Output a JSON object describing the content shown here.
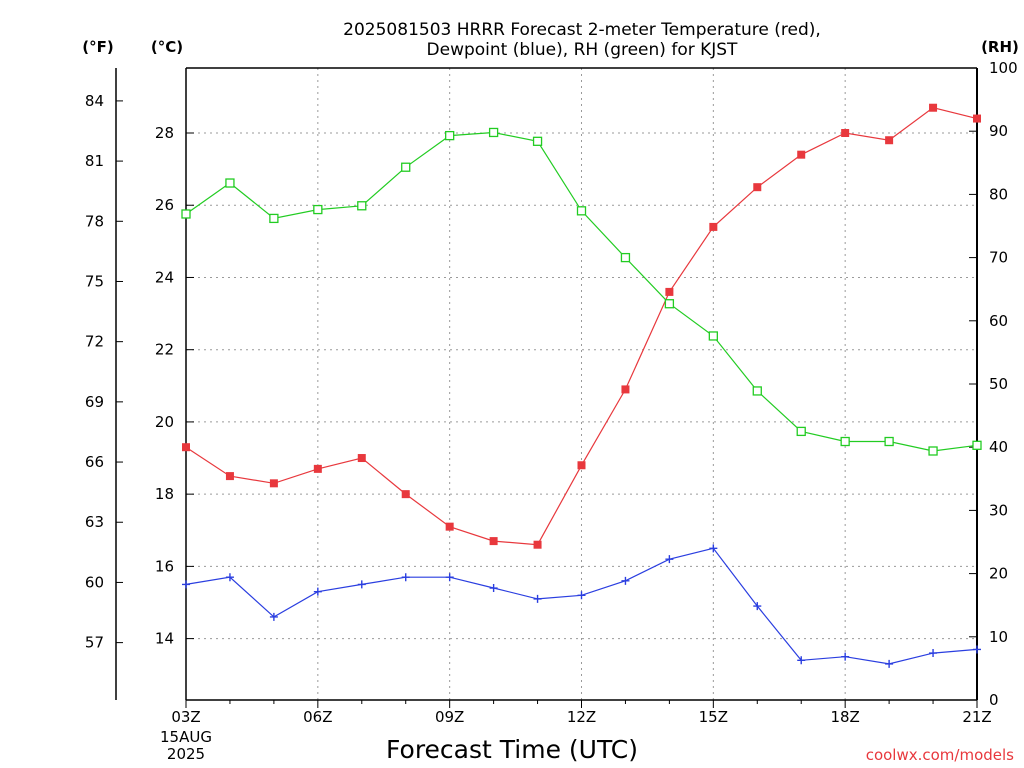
{
  "chart_data": {
    "type": "line",
    "title_line1": "2025081503 HRRR Forecast 2-meter Temperature (red),",
    "title_line2": "Dewpoint (blue), RH (green) for KJST",
    "xlabel": "Forecast Time (UTC)",
    "date_label_line1": "15AUG",
    "date_label_line2": "2025",
    "watermark": "coolwx.com/models",
    "unit_labels": {
      "fahrenheit": "(°F)",
      "celsius": "(°C)",
      "rh": "(RH)"
    },
    "x_categories": [
      "03Z",
      "04Z",
      "05Z",
      "06Z",
      "07Z",
      "08Z",
      "09Z",
      "10Z",
      "11Z",
      "12Z",
      "13Z",
      "14Z",
      "15Z",
      "16Z",
      "17Z",
      "18Z",
      "19Z",
      "20Z",
      "21Z"
    ],
    "x_tick_labels": [
      "03Z",
      "06Z",
      "09Z",
      "12Z",
      "15Z",
      "18Z",
      "21Z"
    ],
    "celsius_axis": {
      "range": [
        12.3,
        29.8
      ],
      "ticks": [
        14,
        16,
        18,
        20,
        22,
        24,
        26,
        28
      ]
    },
    "fahrenheit_axis": {
      "ticks": [
        57,
        60,
        63,
        66,
        69,
        72,
        75,
        78,
        81,
        84
      ]
    },
    "rh_axis": {
      "range": [
        0,
        100
      ],
      "ticks": [
        0,
        10,
        20,
        30,
        40,
        50,
        60,
        70,
        80,
        90,
        100
      ]
    },
    "grid": true,
    "series": [
      {
        "name": "Temperature",
        "axis": "celsius",
        "color": "#e8383d",
        "marker": "filled-square",
        "values": [
          19.3,
          18.5,
          18.3,
          18.7,
          19.0,
          18.0,
          17.1,
          16.7,
          16.6,
          18.8,
          20.9,
          23.6,
          25.4,
          26.5,
          27.4,
          28.0,
          27.8,
          28.7,
          28.4
        ]
      },
      {
        "name": "Dewpoint",
        "axis": "celsius",
        "color": "#2a3ee0",
        "marker": "plus",
        "values": [
          15.5,
          15.7,
          14.6,
          15.3,
          15.5,
          15.7,
          15.7,
          15.4,
          15.1,
          15.2,
          15.6,
          16.2,
          16.5,
          14.9,
          13.4,
          13.5,
          13.3,
          13.6,
          13.7
        ]
      },
      {
        "name": "RH",
        "axis": "rh",
        "color": "#22cc22",
        "marker": "open-square",
        "values": [
          76.9,
          81.8,
          76.2,
          77.6,
          78.2,
          84.3,
          89.3,
          89.8,
          88.4,
          77.4,
          70.0,
          62.7,
          57.6,
          48.9,
          42.5,
          40.9,
          40.9,
          39.4,
          40.3
        ]
      }
    ]
  }
}
